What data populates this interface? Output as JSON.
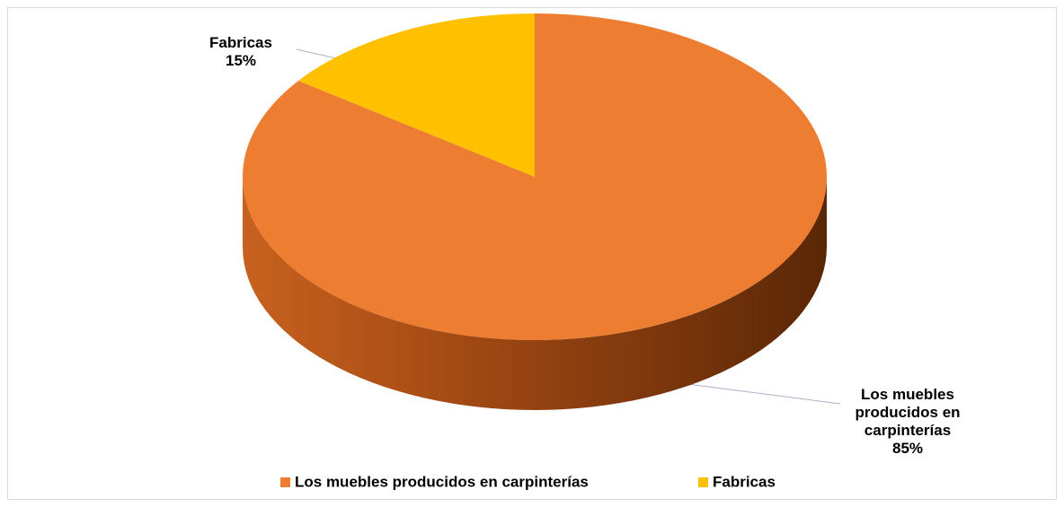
{
  "chart_data": {
    "type": "pie",
    "categories": [
      "Los muebles producidos en carpinterías",
      "Fabricas"
    ],
    "values": [
      85,
      15
    ],
    "value_labels": [
      "85%",
      "15%"
    ],
    "colors": [
      "#ed7d31",
      "#ffc000"
    ],
    "legend": "bottom"
  }
}
